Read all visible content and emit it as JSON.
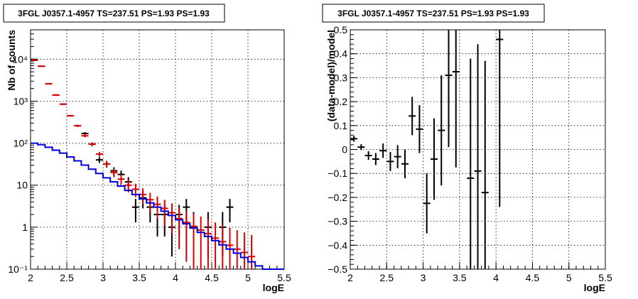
{
  "chart_data": [
    {
      "type": "line",
      "panel": "left",
      "title": "3FGL J0357.1-4957 TS=237.51 PS=1.93 PS=1.93",
      "xlabel": "logE",
      "ylabel": "Nb of counts",
      "xlim": [
        2,
        5.5
      ],
      "ylim": [
        0.1,
        50000
      ],
      "yscale": "log",
      "grid": true,
      "x_ticks": [
        "2",
        "2.5",
        "3",
        "3.5",
        "4",
        "4.5",
        "5",
        "5.5"
      ],
      "y_ticks": [
        "10⁻¹",
        "1",
        "10",
        "10²",
        "10³",
        "10⁴"
      ],
      "series": [
        {
          "color": "#000000",
          "x": [
            2.05,
            2.15,
            2.25,
            2.35,
            2.45,
            2.55,
            2.65,
            2.75,
            2.85,
            2.95,
            3.05,
            3.15,
            3.25,
            3.35,
            3.45,
            3.55,
            3.65,
            3.75,
            3.85,
            3.95,
            4.05,
            4.15,
            4.25,
            4.35,
            4.45,
            4.55,
            4.65,
            4.75
          ],
          "y": [
            9800,
            6800,
            2600,
            1400,
            850,
            450,
            260,
            170,
            95,
            40,
            32,
            22,
            18,
            12,
            3,
            5,
            3,
            2,
            2,
            1,
            2,
            3,
            1,
            0,
            1,
            0,
            1,
            3
          ],
          "err_lo": [
            99,
            82,
            51,
            37,
            29,
            21,
            16,
            13,
            9.7,
            6.3,
            5.7,
            4.7,
            4.2,
            3.5,
            1.7,
            2.2,
            1.7,
            1.4,
            1.4,
            0.8,
            1.4,
            1.7,
            0.8,
            0,
            0.8,
            0,
            0.8,
            1.7
          ],
          "err_hi": [
            99,
            82,
            51,
            37,
            29,
            21,
            16,
            13,
            9.7,
            6.3,
            5.7,
            4.7,
            4.2,
            3.5,
            1.7,
            2.2,
            1.7,
            1.4,
            1.4,
            1.3,
            1.4,
            1.7,
            1.3,
            0,
            1.3,
            0,
            1.3,
            1.7
          ]
        },
        {
          "color": "#dd0000",
          "x": [
            2.05,
            2.15,
            2.25,
            2.35,
            2.45,
            2.55,
            2.65,
            2.75,
            2.85,
            2.95,
            3.05,
            3.15,
            3.25,
            3.35,
            3.45,
            3.55,
            3.65,
            3.75,
            3.85,
            3.95,
            4.05,
            4.15,
            4.25,
            4.35,
            4.45,
            4.55,
            4.65,
            4.75,
            4.85,
            4.95,
            5.05
          ],
          "y": [
            9400,
            6800,
            2600,
            1400,
            850,
            450,
            260,
            150,
            95,
            55,
            32,
            20,
            14,
            10,
            8,
            6,
            4.5,
            3.5,
            2.8,
            2.2,
            1.6,
            1.3,
            1.05,
            0.85,
            0.7,
            0.55,
            0.45,
            0.37,
            0.3,
            0.25,
            0.2
          ],
          "err_lo": [
            97,
            82,
            51,
            37,
            29,
            21,
            16,
            12,
            9.7,
            7.4,
            5.7,
            4.5,
            3.7,
            3.2,
            2.8,
            2.4,
            2.1,
            1.9,
            1.7,
            1.5,
            1.3,
            1.15,
            0.95,
            0.75,
            0.6,
            0.45,
            0.35,
            0.27,
            0.2,
            0.15,
            0.1
          ],
          "err_hi": [
            97,
            82,
            51,
            37,
            29,
            21,
            16,
            12,
            9.7,
            7.4,
            5.7,
            4.5,
            3.7,
            3.2,
            2.8,
            2.4,
            2.1,
            1.9,
            1.7,
            1.5,
            1.3,
            1.15,
            1.0,
            0.95,
            0.85,
            0.75,
            0.68,
            0.6,
            0.55,
            0.5,
            0.45
          ]
        },
        {
          "color": "#0000dd",
          "kind": "step",
          "x_edges": [
            2.0,
            2.1,
            2.2,
            2.3,
            2.4,
            2.5,
            2.6,
            2.7,
            2.8,
            2.9,
            3.0,
            3.1,
            3.2,
            3.3,
            3.4,
            3.5,
            3.6,
            3.7,
            3.8,
            3.9,
            4.0,
            4.1,
            4.2,
            4.3,
            4.4,
            4.5,
            4.6,
            4.7,
            4.8,
            4.9,
            5.0,
            5.1,
            5.2,
            5.3,
            5.4,
            5.5
          ],
          "y": [
            100,
            92,
            80,
            68,
            58,
            47,
            38,
            30,
            24,
            19,
            15,
            12,
            9.5,
            7.5,
            6,
            4.7,
            3.8,
            3.0,
            2.4,
            1.9,
            1.5,
            1.2,
            0.95,
            0.75,
            0.6,
            0.48,
            0.38,
            0.3,
            0.24,
            0.19,
            0.15,
            0.12,
            0.1,
            0.1,
            0.1
          ]
        }
      ]
    },
    {
      "type": "scatter",
      "panel": "right",
      "title": "3FGL J0357.1-4957 TS=237.51 PS=1.93 PS=1.93",
      "xlabel": "logE",
      "ylabel": "(data-model)/model",
      "xlim": [
        2,
        5.5
      ],
      "ylim": [
        -0.5,
        0.5
      ],
      "grid": true,
      "x_ticks": [
        "2",
        "2.5",
        "3",
        "3.5",
        "4",
        "4.5",
        "5",
        "5.5"
      ],
      "y_ticks": [
        "−0.5",
        "−0.4",
        "−0.3",
        "−0.2",
        "−0.1",
        "0",
        "0.1",
        "0.2",
        "0.3",
        "0.4",
        "0.5"
      ],
      "series": [
        {
          "color": "#000000",
          "x": [
            2.05,
            2.15,
            2.25,
            2.35,
            2.45,
            2.55,
            2.65,
            2.75,
            2.85,
            2.95,
            3.05,
            3.15,
            3.25,
            3.35,
            3.45,
            3.65,
            3.75,
            3.85,
            4.05
          ],
          "y": [
            0.045,
            0.01,
            -0.025,
            -0.04,
            -0.005,
            -0.05,
            -0.03,
            -0.06,
            0.14,
            0.085,
            -0.225,
            -0.04,
            0.08,
            0.31,
            0.325,
            -0.12,
            -0.09,
            -0.18,
            0.46
          ],
          "err": [
            0.012,
            0.012,
            0.018,
            0.025,
            0.03,
            0.04,
            0.048,
            0.06,
            0.08,
            0.1,
            0.125,
            0.17,
            0.23,
            0.3,
            0.4,
            0.5,
            0.53,
            0.55,
            0.7
          ]
        }
      ]
    }
  ]
}
